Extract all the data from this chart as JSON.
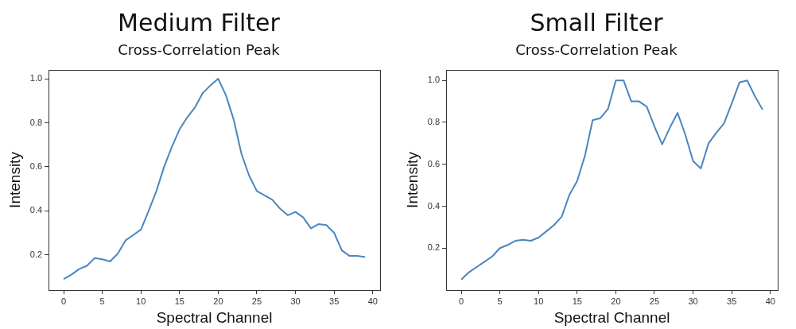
{
  "chart_data": [
    {
      "type": "line",
      "title": "Medium Filter",
      "subtitle": "Cross-Correlation Peak",
      "xlabel": "Spectral Channel",
      "ylabel": "Intensity",
      "x": [
        0,
        1,
        2,
        3,
        4,
        5,
        6,
        7,
        8,
        9,
        10,
        11,
        12,
        13,
        14,
        15,
        16,
        17,
        18,
        19,
        20,
        21,
        22,
        23,
        24,
        25,
        26,
        27,
        28,
        29,
        30,
        31,
        32,
        33,
        34,
        35,
        36,
        37,
        38,
        39
      ],
      "series": [
        {
          "color": "#4a86c0",
          "values": [
            0.09,
            0.11,
            0.135,
            0.15,
            0.185,
            0.18,
            0.17,
            0.205,
            0.265,
            0.29,
            0.315,
            0.4,
            0.49,
            0.6,
            0.69,
            0.77,
            0.825,
            0.87,
            0.935,
            0.97,
            1.0,
            0.925,
            0.815,
            0.66,
            0.56,
            0.49,
            0.47,
            0.45,
            0.41,
            0.38,
            0.395,
            0.37,
            0.32,
            0.34,
            0.335,
            0.3,
            0.22,
            0.195,
            0.195,
            0.19
          ]
        }
      ],
      "xlim": [
        -1.95,
        40.95
      ],
      "xticks": [
        0,
        5,
        10,
        15,
        20,
        25,
        30,
        35,
        40
      ],
      "ylim": [
        0.04,
        1.04
      ],
      "yticks": [
        0.2,
        0.4,
        0.6,
        0.8,
        {
          "value": 1,
          "label": "1.0"
        }
      ],
      "grid": false,
      "legend": false,
      "marker": "none",
      "line_style": "solid"
    },
    {
      "type": "line",
      "title": "Small Filter",
      "subtitle": "Cross-Correlation Peak",
      "xlabel": "Spectral Channel",
      "ylabel": "Intensity",
      "x": [
        0,
        1,
        2,
        3,
        4,
        5,
        6,
        7,
        8,
        9,
        10,
        11,
        12,
        13,
        14,
        15,
        16,
        17,
        18,
        19,
        20,
        21,
        22,
        23,
        24,
        25,
        26,
        27,
        28,
        29,
        30,
        31,
        32,
        33,
        34,
        35,
        36,
        37,
        38,
        39
      ],
      "series": [
        {
          "color": "#4a86c0",
          "values": [
            0.05,
            0.085,
            0.11,
            0.135,
            0.16,
            0.2,
            0.215,
            0.235,
            0.24,
            0.235,
            0.25,
            0.28,
            0.31,
            0.35,
            0.455,
            0.52,
            0.64,
            0.81,
            0.82,
            0.865,
            1.0,
            1.0,
            0.9,
            0.9,
            0.875,
            0.78,
            0.695,
            0.775,
            0.845,
            0.74,
            0.615,
            0.58,
            0.7,
            0.75,
            0.795,
            0.89,
            0.99,
            1.0,
            0.925,
            0.86
          ]
        }
      ],
      "xlim": [
        -1.95,
        40.95
      ],
      "xticks": [
        0,
        5,
        10,
        15,
        20,
        25,
        30,
        35,
        40
      ],
      "ylim": [
        0.0,
        1.05
      ],
      "yticks": [
        0.2,
        0.4,
        0.6,
        0.8,
        {
          "value": 1,
          "label": "1.0"
        }
      ],
      "grid": false,
      "legend": false,
      "marker": "none",
      "line_style": "solid"
    }
  ]
}
